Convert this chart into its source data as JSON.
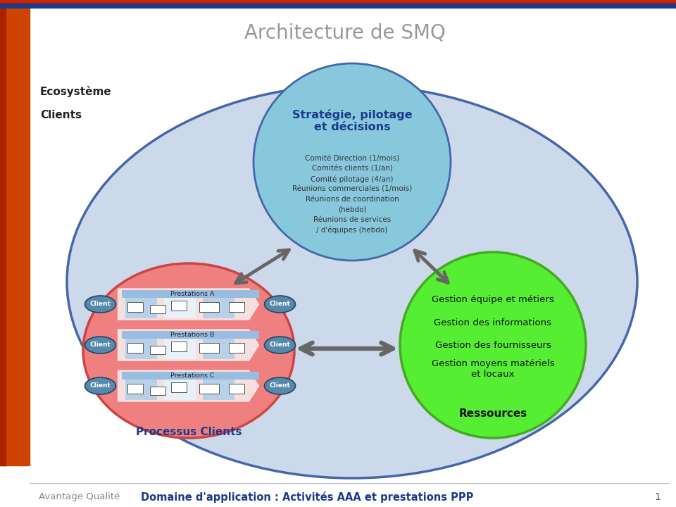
{
  "title": "Architecture de SMQ",
  "title_color": "#999999",
  "title_fontsize": 20,
  "bg_color": "#ffffff",
  "header_bar_red": "#cc2200",
  "header_bar_blue": "#1a3a8a",
  "left_sidebar_color": "#cc4400",
  "ecosystem_label1": "Ecosystème",
  "ecosystem_label2": "Clients",
  "main_ellipse_color": "#ccd9ea",
  "main_ellipse_border": "#4466aa",
  "strategy_circle_color": "#88c8dd",
  "strategy_circle_border": "#4466aa",
  "strategy_title": "Stratégie, pilotage\net décisions",
  "strategy_items": [
    "Comité Direction (1/mois)",
    "Comités clients (1/an)",
    "Comité pilotage (4/an)",
    "Réunions commerciales (1/mois)",
    "Réunions de coordination",
    "(hebdo)",
    "Réunions de services",
    "/ d'équipes (hebdo)"
  ],
  "processus_circle_color": "#f08080",
  "processus_circle_border": "#cc5555",
  "processus_title": "Processus Clients",
  "processus_prestations": [
    "Prestations A",
    "Prestations B",
    "Prestations C"
  ],
  "client_ellipse_color": "#5588aa",
  "ressources_circle_color": "#55ee33",
  "ressources_circle_border": "#44aa22",
  "ressources_title": "Ressources",
  "ressources_items": [
    "Gestion équipe et métiers",
    "Gestion des informations",
    "Gestion des fournisseurs",
    "Gestion moyens matériels\net locaux"
  ],
  "arrow_color": "#666666",
  "footer_text1": "Avantage Qualité",
  "footer_text2": "Domaine d'application : Activités AAA et prestations PPP",
  "footer_color1": "#888888",
  "footer_color2": "#1a3a8a",
  "page_number": "1"
}
